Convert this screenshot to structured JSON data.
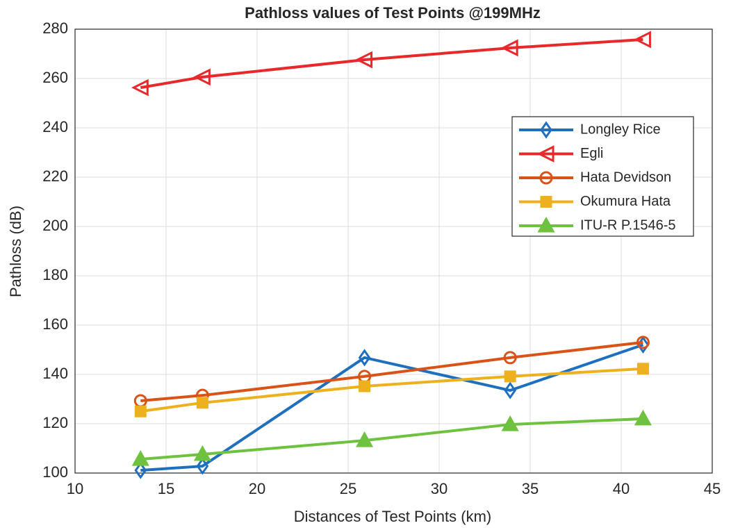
{
  "chart_data": {
    "type": "line",
    "title": "Pathloss values of Test Points @199MHz",
    "x_label": "Distances of Test Points (km)",
    "y_label": "Pathloss (dB)",
    "x": [
      13.6,
      17,
      25.9,
      33.9,
      41.2
    ],
    "xlim": [
      10,
      45
    ],
    "xticks": [
      10,
      15,
      20,
      25,
      30,
      35,
      40,
      45
    ],
    "ylim": [
      100,
      280
    ],
    "yticks": [
      100,
      120,
      140,
      160,
      180,
      200,
      220,
      240,
      260,
      280
    ],
    "grid": true,
    "legend": "upper right",
    "series": [
      {
        "name": "Longley Rice",
        "color": "#1f6fbf",
        "marker": "diamond",
        "values": [
          101.1,
          102.8,
          146.8,
          133.5,
          152
        ]
      },
      {
        "name": "Egli",
        "color": "#e8292b",
        "marker": "triangle-left",
        "values": [
          256.3,
          260.6,
          267.6,
          272.4,
          275.8
        ]
      },
      {
        "name": "Hata Devidson",
        "color": "#d95319",
        "marker": "circle",
        "values": [
          129.3,
          131.5,
          139.2,
          146.8,
          153
        ]
      },
      {
        "name": "Okumura Hata",
        "color": "#edb120",
        "marker": "square",
        "values": [
          125,
          128.5,
          135.2,
          139.2,
          142.3
        ]
      },
      {
        "name": "ITU-R P.1546-5",
        "color": "#6fc23f",
        "marker": "triangle-up",
        "values": [
          105.6,
          107.6,
          113.2,
          119.7,
          122
        ]
      }
    ]
  }
}
